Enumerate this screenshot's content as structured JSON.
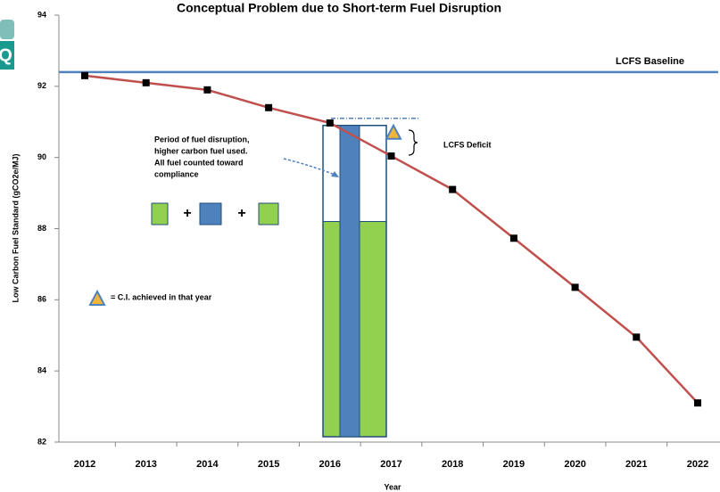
{
  "logo": "Q",
  "chart_data": {
    "type": "line",
    "title": "Conceptual Problem due to Short-term Fuel Disruption",
    "x_label": "Year",
    "y_label": "Low Carbon Fuel Standard (gCO2e/MJ)",
    "categories": [
      "2012",
      "2013",
      "2014",
      "2015",
      "2016",
      "2017",
      "2018",
      "2019",
      "2020",
      "2021",
      "2022"
    ],
    "series": [
      {
        "color": "#c0504d",
        "values": [
          92.3,
          92.1,
          91.9,
          91.4,
          90.97,
          90.04,
          89.1,
          87.73,
          86.35,
          84.95,
          83.1
        ]
      }
    ],
    "ylim": [
      82,
      94
    ],
    "yticks": [
      82,
      84,
      86,
      88,
      90,
      92,
      94
    ],
    "baseline": {
      "label": "LCFS Baseline",
      "value": 92.4,
      "color": "#4f81bd"
    },
    "disruption": {
      "text": [
        "Period of fuel disruption,",
        "higher carbon fuel used.",
        "All fuel counted toward",
        "compliance"
      ],
      "green_level": 88.2,
      "green_color": "#92d050",
      "blue_level": 90.9,
      "blue_color": "#4f81bd",
      "dashed_level": 91.1,
      "plus": "+"
    },
    "deficit": {
      "label": "LCFS Deficit",
      "marker_value": 90.7
    },
    "marker_legend": "= C.I. achieved in that year"
  }
}
